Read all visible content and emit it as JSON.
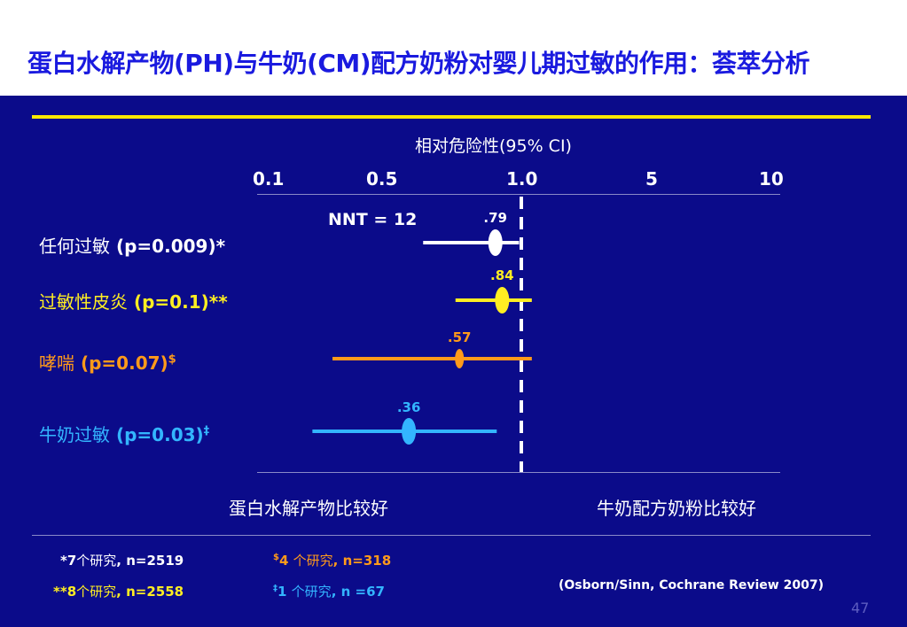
{
  "title": "蛋白水解产物(PH)与牛奶(CM)配方奶粉对婴儿期过敏的作用：荟萃分析",
  "chart_data": {
    "type": "forest",
    "axis_title": "相对危险性(95% CI)",
    "x_scale": "log",
    "x_ticks": [
      "0.1",
      "0.5",
      "1.0",
      "5",
      "10"
    ],
    "reference_line": 1.0,
    "annotation": "NNT = 12",
    "rows": [
      {
        "cn": "任何过敏",
        "stat": " (p=0.009)*",
        "sup": "",
        "rr": 0.79,
        "rr_label": ".79",
        "ci": [
          0.41,
          0.98
        ],
        "color": "#ffffff",
        "label_color": "#ffffff"
      },
      {
        "cn": "过敏性皮炎",
        "stat": " (p=0.1)**",
        "sup": "",
        "rr": 0.84,
        "rr_label": ".84",
        "ci": [
          0.55,
          1.1
        ],
        "color": "#ffee22",
        "label_color": "#ffee22"
      },
      {
        "cn": "哮喘",
        "stat": " (p=0.07)",
        "sup": "$",
        "rr": 0.57,
        "rr_label": ".57",
        "ci": [
          0.18,
          1.1
        ],
        "color": "#ff9a1a",
        "label_color": "#ff9a1a"
      },
      {
        "cn": "牛奶过敏",
        "stat": " (p=0.03)",
        "sup": "‡",
        "rr": 0.36,
        "rr_label": ".36",
        "ci": [
          0.15,
          0.8
        ],
        "color": "#33b5ff",
        "label_color": "#33b5ff"
      }
    ],
    "favors_left": "蛋白水解产物比较好",
    "favors_right": "牛奶配方奶粉比较好"
  },
  "footnotes": [
    {
      "pre": "*7",
      "cn": "个研究",
      "post": ", n=2519",
      "sup": "",
      "color": "#ffffff"
    },
    {
      "pre": "**8",
      "cn": "个研究",
      "post": ", n=2558",
      "sup": "",
      "color": "#ffee22"
    },
    {
      "pre": "4 ",
      "cn": "个研究",
      "post": ", n=318",
      "sup": "$",
      "color": "#ff9a1a"
    },
    {
      "pre": "1 ",
      "cn": "个研究",
      "post": ", n =67",
      "sup": "‡",
      "color": "#33b5ff"
    }
  ],
  "citation": "(Osborn/Sinn, Cochrane Review 2007)",
  "page_number": "47"
}
